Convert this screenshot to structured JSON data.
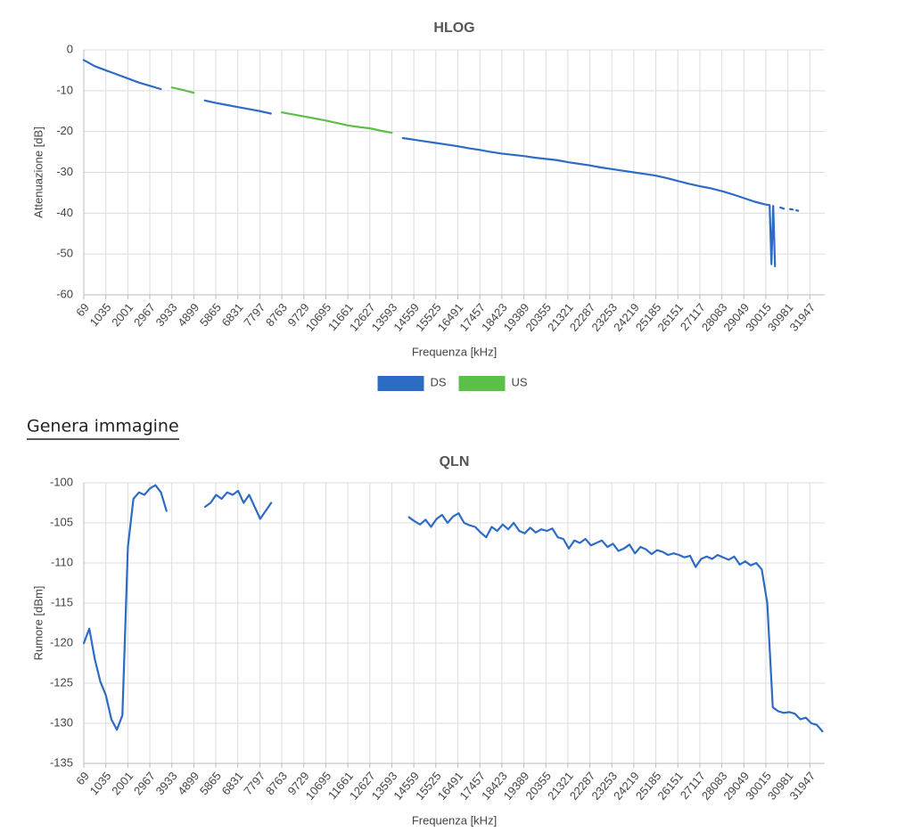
{
  "chart_data": [
    {
      "type": "line",
      "title": "HLOG",
      "x_label": "Frequenza [kHz]",
      "y_label": "Attenuazione [dB]",
      "xlim": [
        69,
        32600
      ],
      "ylim": [
        -60,
        0
      ],
      "xticks": [
        69,
        1035,
        2001,
        2967,
        3933,
        4899,
        5865,
        6831,
        7797,
        8763,
        9729,
        10695,
        11661,
        12627,
        13593,
        14559,
        15525,
        16491,
        17457,
        18423,
        19389,
        20355,
        21321,
        22287,
        23253,
        24219,
        25185,
        26151,
        27117,
        28083,
        29049,
        30015,
        30981,
        31947
      ],
      "yticks": [
        0,
        -10,
        -20,
        -30,
        -40,
        -50,
        -60
      ],
      "grid": true,
      "legend": "bottom",
      "x": [
        69,
        552,
        1035,
        1518,
        2001,
        2484,
        2967,
        3450,
        3933,
        4416,
        4899,
        5382,
        5865,
        6348,
        6831,
        7314,
        7797,
        8280,
        8763,
        9246,
        9729,
        10212,
        10695,
        11178,
        11661,
        12144,
        12627,
        13110,
        13593,
        14076,
        14559,
        15042,
        15525,
        16008,
        16491,
        16974,
        17457,
        17940,
        18423,
        18906,
        19389,
        19872,
        20355,
        20838,
        21321,
        21804,
        22287,
        22770,
        23253,
        23736,
        24219,
        24702,
        25185,
        25668,
        26151,
        26634,
        27117,
        27600,
        28083,
        28566,
        29049,
        29532,
        30015,
        30180,
        30260,
        30338,
        30417,
        30550,
        30650,
        30806,
        30963,
        31080,
        31198,
        31277,
        31355,
        31433
      ],
      "series": [
        {
          "name": "DS",
          "color": "#2d6bc4",
          "values": [
            -2.5,
            -4.0,
            -5.0,
            -6.0,
            -7.0,
            -8.0,
            -8.8,
            -9.6,
            null,
            null,
            null,
            -12.4,
            -13.0,
            -13.5,
            -14.0,
            -14.5,
            -15.0,
            -15.6,
            null,
            null,
            null,
            null,
            null,
            null,
            null,
            null,
            null,
            null,
            null,
            -21.6,
            -22.0,
            -22.4,
            -22.8,
            -23.2,
            -23.6,
            -24.1,
            -24.5,
            -25.0,
            -25.4,
            -25.7,
            -26.0,
            -26.4,
            -26.7,
            -27.0,
            -27.5,
            -27.9,
            -28.3,
            -28.8,
            -29.2,
            -29.6,
            -30.0,
            -30.4,
            -30.8,
            -31.4,
            -32.1,
            -32.8,
            -33.4,
            -33.9,
            -34.6,
            -35.4,
            -36.3,
            -37.2,
            -37.9,
            -38.0,
            -52.5,
            -38.2,
            -53.0,
            null,
            -38.6,
            -38.9,
            null,
            -39.0,
            -39.1,
            null,
            -39.3,
            -39.4
          ]
        },
        {
          "name": "US",
          "color": "#5cbf4a",
          "values": [
            null,
            null,
            null,
            null,
            null,
            null,
            null,
            null,
            -9.2,
            -9.8,
            -10.5,
            null,
            null,
            null,
            null,
            null,
            null,
            null,
            -15.3,
            -15.8,
            -16.3,
            -16.8,
            -17.3,
            -17.9,
            -18.5,
            -18.9,
            -19.2,
            -19.8,
            -20.3,
            null,
            null,
            null,
            null,
            null,
            null,
            null,
            null,
            null,
            null,
            null,
            null,
            null,
            null,
            null,
            null,
            null,
            null,
            null,
            null,
            null,
            null,
            null,
            null,
            null,
            null,
            null,
            null,
            null,
            null,
            null,
            null,
            null,
            null,
            null,
            null,
            null,
            null,
            null,
            null,
            null,
            null,
            null,
            null,
            null,
            null,
            null
          ]
        }
      ]
    },
    {
      "type": "line",
      "title": "QLN",
      "x_label": "Frequenza [kHz]",
      "y_label": "Rumore [dBm]",
      "xlim": [
        69,
        32600
      ],
      "ylim": [
        -135,
        -100
      ],
      "xticks": [
        69,
        1035,
        2001,
        2967,
        3933,
        4899,
        5865,
        6831,
        7797,
        8763,
        9729,
        10695,
        11661,
        12627,
        13593,
        14559,
        15525,
        16491,
        17457,
        18423,
        19389,
        20355,
        21321,
        22287,
        23253,
        24219,
        25185,
        26151,
        27117,
        28083,
        29049,
        30015,
        30981,
        31947
      ],
      "yticks": [
        -100,
        -105,
        -110,
        -115,
        -120,
        -125,
        -130,
        -135
      ],
      "grid": true,
      "x": [
        69,
        311,
        553,
        795,
        1037,
        1279,
        1521,
        1763,
        2005,
        2247,
        2489,
        2731,
        2973,
        3215,
        3457,
        3699,
        3941,
        4183,
        4425,
        4667,
        4909,
        5151,
        5393,
        5635,
        5877,
        6119,
        6361,
        6603,
        6845,
        7087,
        7329,
        7571,
        7813,
        8055,
        8297,
        8539,
        8781,
        9023,
        9265,
        9507,
        9749,
        9991,
        10233,
        10475,
        10717,
        10959,
        11201,
        11443,
        11685,
        11927,
        12169,
        12411,
        12653,
        12895,
        13137,
        13379,
        13621,
        13863,
        14105,
        14347,
        14589,
        14831,
        15073,
        15315,
        15557,
        15799,
        16041,
        16283,
        16525,
        16767,
        17009,
        17251,
        17493,
        17735,
        17977,
        18219,
        18461,
        18703,
        18945,
        19187,
        19429,
        19671,
        19913,
        20155,
        20397,
        20639,
        20881,
        21123,
        21365,
        21607,
        21849,
        22091,
        22333,
        22575,
        22817,
        23059,
        23301,
        23543,
        23785,
        24027,
        24269,
        24511,
        24753,
        24995,
        25237,
        25479,
        25721,
        25963,
        26205,
        26447,
        26689,
        26931,
        27173,
        27415,
        27657,
        27899,
        28141,
        28383,
        28625,
        28867,
        29109,
        29351,
        29593,
        29835,
        30077,
        30319,
        30561,
        30803,
        31045,
        31287,
        31529,
        31771,
        32013,
        32255,
        32497
      ],
      "series": [
        {
          "color": "#2d6bc4",
          "values": [
            -120,
            -118.2,
            -122,
            -124.8,
            -126.5,
            -129.5,
            -130.8,
            -129,
            -108,
            -102,
            -101.2,
            -101.5,
            -100.7,
            -100.3,
            -101.2,
            -103.5,
            null,
            null,
            null,
            null,
            null,
            null,
            -103,
            -102.5,
            -101.5,
            -102,
            -101.2,
            -101.5,
            -101,
            -102.5,
            -101.5,
            -103,
            -104.5,
            -103.5,
            -102.5,
            null,
            null,
            null,
            null,
            null,
            null,
            null,
            null,
            null,
            null,
            null,
            null,
            null,
            null,
            null,
            null,
            null,
            null,
            null,
            null,
            null,
            null,
            null,
            null,
            -104.3,
            -104.8,
            -105.2,
            -104.6,
            -105.5,
            -104.5,
            -104.0,
            -105.0,
            -104.2,
            -103.8,
            -105.0,
            -105.3,
            -105.5,
            -106.2,
            -106.8,
            -105.5,
            -106.0,
            -105.2,
            -105.8,
            -105.0,
            -106.0,
            -106.3,
            -105.6,
            -106.2,
            -105.8,
            -106.0,
            -105.7,
            -106.8,
            -107.0,
            -108.2,
            -107.2,
            -107.5,
            -107.0,
            -107.8,
            -107.5,
            -107.2,
            -108.0,
            -107.6,
            -108.5,
            -108.2,
            -107.7,
            -108.8,
            -108.0,
            -108.3,
            -108.9,
            -108.4,
            -108.6,
            -109.0,
            -108.8,
            -109.0,
            -109.3,
            -109.1,
            -110.5,
            -109.5,
            -109.2,
            -109.5,
            -109.0,
            -109.3,
            -109.6,
            -109.2,
            -110.2,
            -109.8,
            -110.3,
            -110.0,
            -110.8,
            -115.0,
            -128.0,
            -128.5,
            -128.7,
            -128.6,
            -128.8,
            -129.5,
            -129.3,
            -130.0,
            -130.2,
            -131.0
          ]
        }
      ]
    }
  ],
  "link": "Genera immagine"
}
